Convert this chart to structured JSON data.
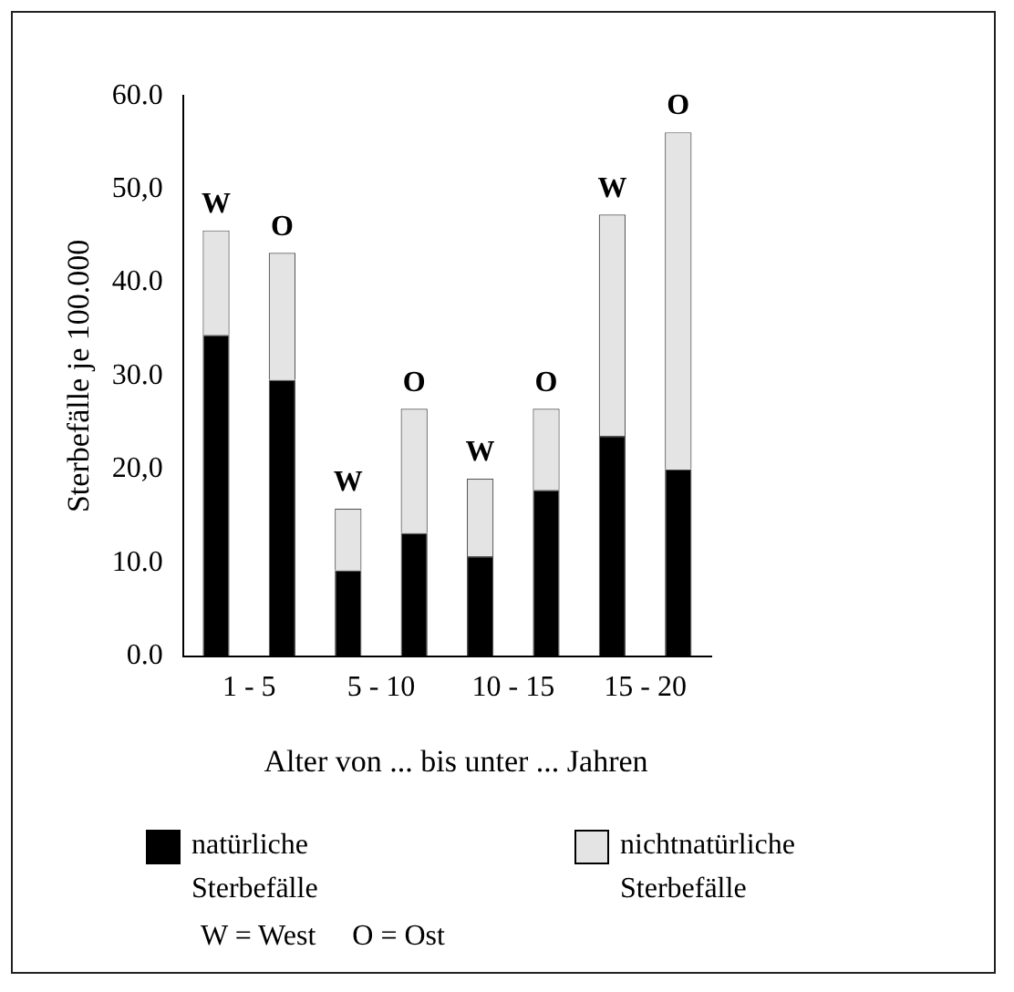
{
  "chart_data": {
    "type": "bar",
    "stacked": true,
    "ylabel": "Sterbefälle je 100.000",
    "xlabel": "Alter von ... bis unter ... Jahren",
    "categories": [
      "1 - 5",
      null,
      "5 - 10",
      null,
      "10 - 15",
      null,
      "15 - 20",
      null
    ],
    "series": [
      {
        "name": "natürliche Sterbefälle",
        "color": "#000000",
        "values": [
          34.4,
          29.6,
          9.2,
          13.2,
          10.7,
          17.8,
          23.6,
          20.0
        ]
      },
      {
        "name": "nichtnatürliche Sterbefälle",
        "color": "#e4e4e4",
        "values": [
          11.2,
          13.6,
          6.6,
          13.3,
          8.3,
          8.7,
          23.7,
          36.1
        ],
        "value_labels": [
          "W",
          "O",
          "W",
          "O",
          "W",
          "O",
          "W",
          "O"
        ]
      }
    ],
    "ylim": [
      0,
      60
    ],
    "yticks": [
      {
        "value": 0,
        "label": "0.0"
      },
      {
        "value": 10,
        "label": "10.0"
      },
      {
        "value": 20,
        "label": "20,0"
      },
      {
        "value": 30,
        "label": "30.0"
      },
      {
        "value": 40,
        "label": "40.0"
      },
      {
        "value": 50,
        "label": "50,0"
      },
      {
        "value": 60,
        "label": "60.0"
      }
    ],
    "grid": false,
    "legend": "bottom",
    "annotations": [
      "W = West     O = Ost"
    ]
  }
}
